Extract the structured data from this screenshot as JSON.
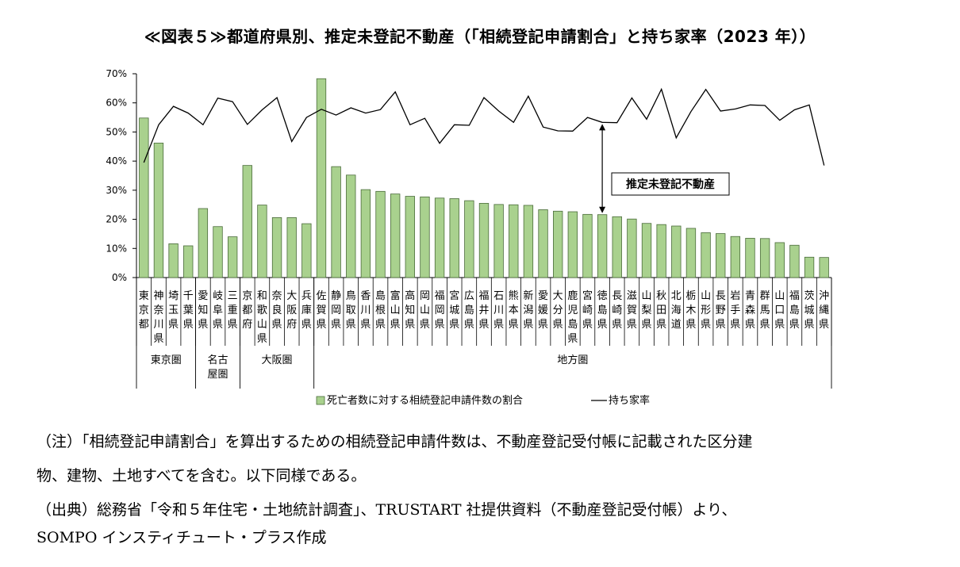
{
  "chart_data": {
    "type": "bar",
    "title": "≪図表５≫都道府県別、推定未登記不動産（「相続登記申請割合」と持ち家率（2023 年））",
    "categories": [
      "東京都",
      "神奈川県",
      "埼玉県",
      "千葉県",
      "愛知県",
      "岐阜県",
      "三重県",
      "京都府",
      "和歌山県",
      "奈良県",
      "大阪府",
      "兵庫県",
      "佐賀県",
      "静岡県",
      "鳥取県",
      "香川県",
      "島根県",
      "富山県",
      "高知県",
      "岡山県",
      "福岡県",
      "宮城県",
      "広島県",
      "福井県",
      "石川県",
      "熊本県",
      "新潟県",
      "愛媛県",
      "大分県",
      "鹿児島県",
      "宮崎県",
      "徳島県",
      "長崎県",
      "滋賀県",
      "山梨県",
      "秋田県",
      "北海道",
      "栃木県",
      "山形県",
      "長野県",
      "岩手県",
      "青森県",
      "群馬県",
      "山口県",
      "福島県",
      "茨城県",
      "沖縄県"
    ],
    "series": [
      {
        "name": "死亡者数に対する相続登記申請件数の割合",
        "kind": "bar",
        "color": "#a9d18e",
        "values": [
          54.8,
          46.2,
          11.6,
          10.9,
          23.7,
          17.5,
          14.0,
          38.5,
          24.9,
          20.6,
          20.6,
          18.5,
          68.3,
          38.1,
          35.2,
          30.2,
          29.6,
          28.7,
          27.9,
          27.7,
          27.3,
          27.1,
          26.4,
          25.5,
          25.1,
          25.0,
          24.8,
          23.3,
          22.8,
          22.6,
          21.7,
          21.6,
          20.9,
          20.1,
          18.6,
          18.2,
          17.7,
          16.9,
          15.4,
          15.1,
          14.1,
          13.5,
          13.4,
          12.0,
          11.1,
          7.0,
          6.9
        ]
      },
      {
        "name": "持ち家率",
        "kind": "line",
        "color": "#000000",
        "values": [
          39.5,
          52.5,
          58.8,
          56.5,
          52.5,
          61.6,
          60.4,
          52.6,
          57.6,
          61.8,
          46.7,
          55.0,
          57.8,
          55.8,
          58.3,
          56.5,
          57.7,
          63.8,
          52.5,
          54.7,
          46.1,
          52.5,
          52.3,
          61.8,
          57.2,
          53.3,
          62.3,
          51.7,
          50.4,
          50.3,
          55.0,
          53.3,
          53.2,
          61.7,
          54.4,
          64.7,
          48.0,
          57.0,
          64.6,
          57.2,
          57.9,
          59.3,
          59.1,
          54.0,
          57.6,
          59.3,
          38.5
        ]
      }
    ],
    "ylim": [
      0,
      70
    ],
    "yticks": [
      "0%",
      "10%",
      "20%",
      "30%",
      "40%",
      "50%",
      "60%",
      "70%"
    ],
    "groups": [
      {
        "label": "東京圏",
        "start": 0,
        "end": 3
      },
      {
        "label": "名古\n屋圏",
        "start": 4,
        "end": 6
      },
      {
        "label": "大阪圏",
        "start": 7,
        "end": 11
      },
      {
        "label": "地方圏",
        "start": 12,
        "end": 46
      }
    ],
    "annotation": {
      "text": "推定未登記不動産",
      "index": 31
    },
    "legend": {
      "bar_label": "死亡者数に対する相続登記申請件数の割合",
      "line_label": "持ち家率",
      "position": "bottom"
    }
  },
  "notes": [
    "（注）「相続登記申請割合」を算出するための相続登記申請件数は、不動産登記受付帳に記載された区分建",
    "物、建物、土地すべてを含む。以下同様である。",
    "（出典）総務省「令和５年住宅・土地統計調査」、TRUSTART 社提供資料（不動産登記受付帳）より、",
    "SOMPO インスティチュート・プラス作成"
  ]
}
